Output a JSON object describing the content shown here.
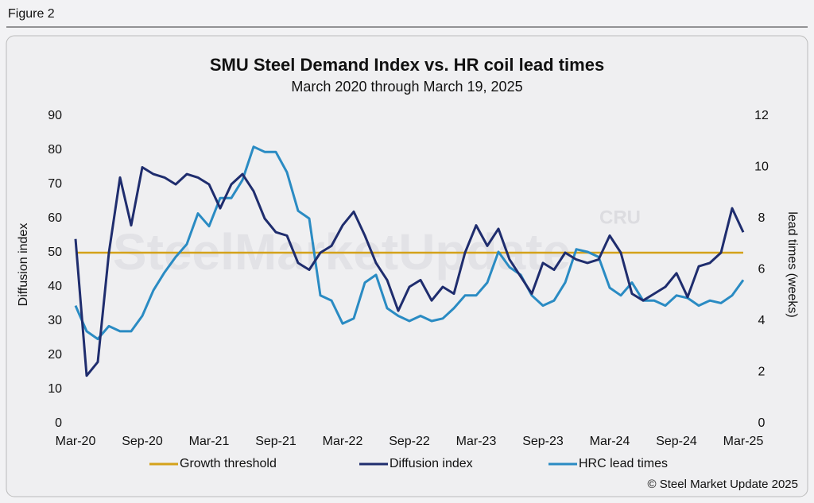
{
  "header": {
    "figure_label": "Figure 2"
  },
  "chart_data": {
    "type": "line",
    "title": "SMU Steel Demand Index vs. HR coil lead times",
    "subtitle": "March 2020 through March 19, 2025",
    "ylabel": "Diffusion index",
    "y2label": "lead times (weeks)",
    "watermark": "SteelMarketUpdate",
    "watermark_logo": "CRU",
    "source": "© Steel Market Update 2025",
    "xlim": [
      0,
      60
    ],
    "xticks": [
      {
        "value": 0,
        "label": "Mar-20"
      },
      {
        "value": 6,
        "label": "Sep-20"
      },
      {
        "value": 12,
        "label": "Mar-21"
      },
      {
        "value": 18,
        "label": "Sep-21"
      },
      {
        "value": 24,
        "label": "Mar-22"
      },
      {
        "value": 30,
        "label": "Sep-22"
      },
      {
        "value": 36,
        "label": "Mar-23"
      },
      {
        "value": 42,
        "label": "Sep-23"
      },
      {
        "value": 48,
        "label": "Mar-24"
      },
      {
        "value": 54,
        "label": "Sep-24"
      },
      {
        "value": 60,
        "label": "Mar-25"
      }
    ],
    "ylim": [
      0,
      90
    ],
    "yticks": [
      0,
      10,
      20,
      30,
      40,
      50,
      60,
      70,
      80,
      90
    ],
    "y2lim": [
      0,
      12
    ],
    "y2ticks": [
      0,
      2,
      4,
      6,
      8,
      10,
      12
    ],
    "threshold": {
      "name": "Growth threshold",
      "value": 50,
      "color": "#d4a21a"
    },
    "x": [
      0,
      1,
      2,
      3,
      4,
      5,
      6,
      7,
      8,
      9,
      10,
      11,
      12,
      13,
      14,
      15,
      16,
      17,
      18,
      19,
      20,
      21,
      22,
      23,
      24,
      25,
      26,
      27,
      28,
      29,
      30,
      31,
      32,
      33,
      34,
      35,
      36,
      37,
      38,
      39,
      40,
      41,
      42,
      43,
      44,
      45,
      46,
      47,
      48,
      49,
      50,
      51,
      52,
      53,
      54,
      55,
      56,
      57,
      58,
      59,
      60
    ],
    "series": [
      {
        "name": "Diffusion index",
        "color": "#1f2d6e",
        "values": [
          54,
          14,
          18,
          50,
          72,
          58,
          75,
          73,
          72,
          70,
          73,
          72,
          70,
          63,
          70,
          73,
          68,
          60,
          56,
          55,
          47,
          45,
          50,
          52,
          58,
          62,
          55,
          47,
          42,
          33,
          40,
          42,
          36,
          40,
          38,
          50,
          58,
          52,
          57,
          48,
          43,
          38,
          47,
          45,
          50,
          48,
          47,
          48,
          55,
          50,
          38,
          36,
          38,
          40,
          44,
          37,
          46,
          47,
          50,
          63,
          56
        ]
      },
      {
        "name": "HRC lead times",
        "color": "#2a8bc3",
        "axis": "y2",
        "values": [
          4.6,
          3.6,
          3.3,
          3.8,
          3.6,
          3.6,
          4.2,
          5.2,
          5.9,
          6.5,
          7.0,
          8.2,
          7.7,
          8.8,
          8.8,
          9.5,
          10.8,
          10.6,
          10.6,
          9.8,
          8.3,
          8.0,
          5.0,
          4.8,
          3.9,
          4.1,
          5.5,
          5.8,
          4.5,
          4.2,
          4.0,
          4.2,
          4.0,
          4.1,
          4.5,
          5.0,
          5.0,
          5.5,
          6.7,
          6.1,
          5.8,
          5.0,
          4.6,
          4.8,
          5.5,
          6.8,
          6.7,
          6.5,
          5.3,
          5.0,
          5.5,
          4.8,
          4.8,
          4.6,
          5.0,
          4.9,
          4.6,
          4.8,
          4.7,
          5.0,
          5.6
        ]
      }
    ]
  }
}
